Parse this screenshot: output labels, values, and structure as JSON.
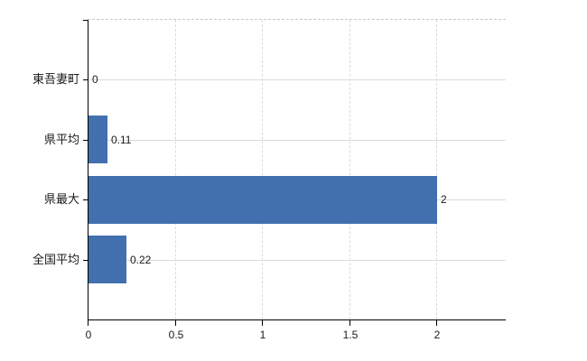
{
  "chart_data": {
    "type": "bar",
    "orientation": "horizontal",
    "title": "",
    "xlabel": "",
    "ylabel": "",
    "categories": [
      "東吾妻町",
      "県平均",
      "県最大",
      "全国平均"
    ],
    "values": [
      0,
      0.11,
      2,
      0.22
    ],
    "value_labels": [
      "0",
      "0.11",
      "2",
      "0.22"
    ],
    "x_ticks": [
      0,
      0.5,
      1,
      1.5,
      2
    ],
    "x_tick_labels": [
      "0",
      "0.5",
      "1",
      "1.5",
      "2"
    ],
    "xlim": [
      0,
      2.4
    ],
    "grid": true,
    "legend": false,
    "bar_color": "#4270ae"
  },
  "colors": {
    "background": "#ffffff",
    "bar": "#4270ae",
    "axis": "#000000",
    "grid_vertical": "#d9dcd9",
    "grid_horizontal": "#d6ded4",
    "plot_top_border": "#c8c8c8",
    "text": "#1a1a1a"
  }
}
